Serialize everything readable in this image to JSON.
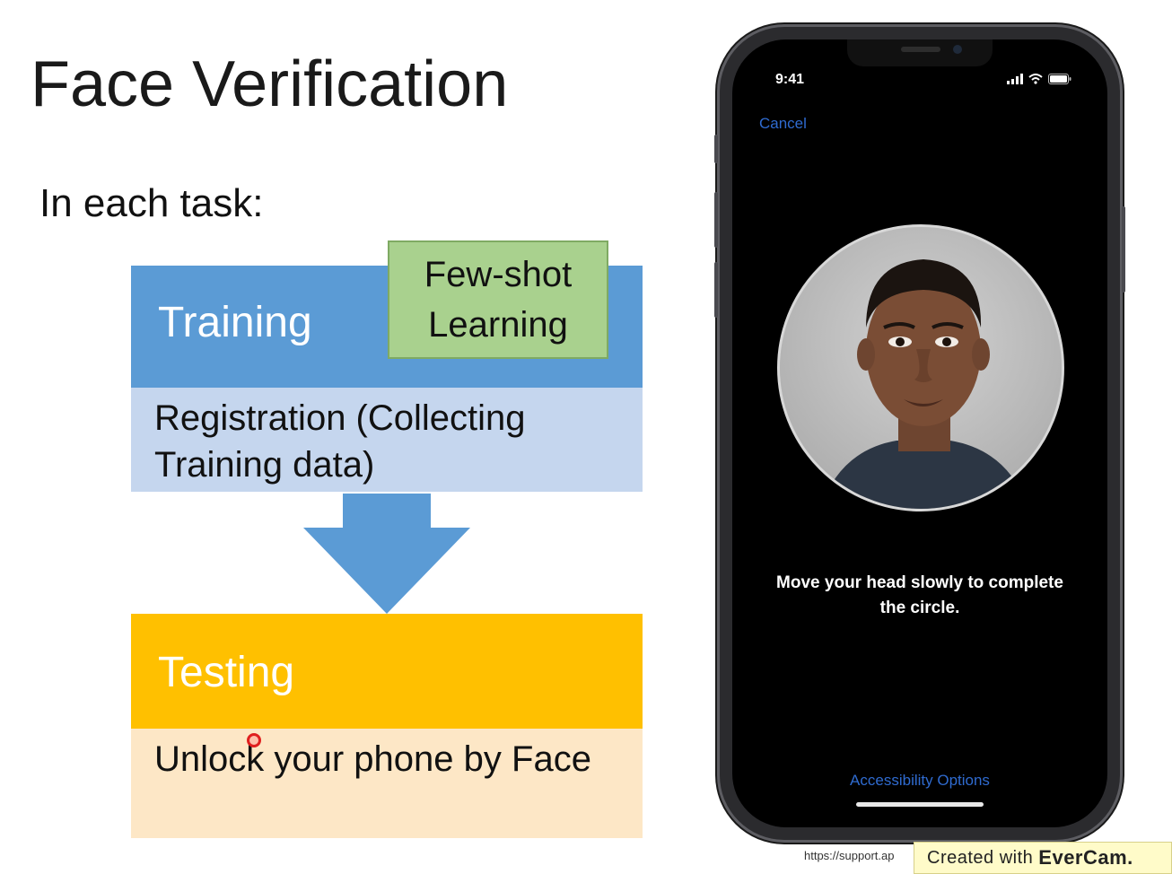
{
  "slide": {
    "title": "Face Verification",
    "subtitle": "In each task:"
  },
  "diagram": {
    "training_label": "Training",
    "fewshot_line1": "Few-shot",
    "fewshot_line2": "Learning",
    "training_desc": "Registration (Collecting Training data)",
    "testing_label": "Testing",
    "testing_desc": "Unlock your phone by Face"
  },
  "phone": {
    "time": "9:41",
    "cancel_label": "Cancel",
    "instruction": "Move your head slowly to complete the circle.",
    "accessibility_label": "Accessibility Options"
  },
  "footer": {
    "url": "https://support.ap",
    "evercam_prefix": "Created with",
    "evercam_brand": "EverCam."
  },
  "colors": {
    "training": "#5b9bd5",
    "training_body": "#c5d6ee",
    "fewshot": "#a9d18e",
    "testing": "#ffc000",
    "testing_body": "#fde7c6",
    "ios_blue": "#2f6bd0"
  }
}
